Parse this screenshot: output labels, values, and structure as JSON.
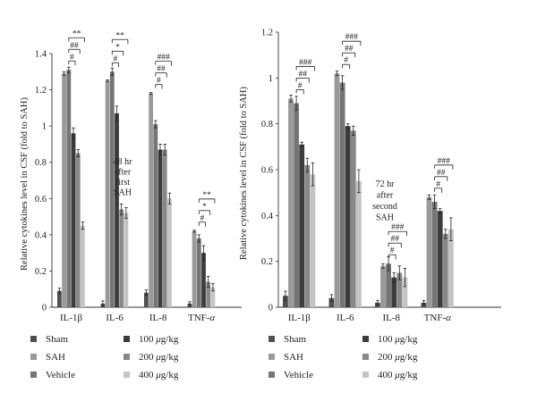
{
  "chart_data": [
    {
      "type": "bar",
      "panel": "left",
      "ylabel": "Relative cytokines level in CSF (fold to SAH)",
      "ylim": [
        0,
        1.4
      ],
      "yticks": [
        "0",
        "0.2",
        "0.4",
        "0.6",
        "0.8",
        "1",
        "1.2",
        "1.4"
      ],
      "categories": [
        "IL-1β",
        "IL-6",
        "IL-8",
        "TNF-α"
      ],
      "series": [
        {
          "name": "Sham",
          "color": "#505050",
          "values": [
            0.09,
            0.02,
            0.08,
            0.02
          ],
          "errors": [
            0.015,
            0.015,
            0.015,
            0.01
          ]
        },
        {
          "name": "SAH",
          "color": "#999999",
          "values": [
            1.29,
            1.25,
            1.18,
            0.42
          ],
          "errors": [
            0.01,
            0.005,
            0.005,
            0.005
          ]
        },
        {
          "name": "Vehicle",
          "color": "#757575",
          "values": [
            1.31,
            1.3,
            1.01,
            0.38
          ],
          "errors": [
            0.015,
            0.02,
            0.02,
            0.02
          ]
        },
        {
          "name": "100 μg/kg",
          "color": "#3c3c3c",
          "values": [
            0.96,
            1.07,
            0.87,
            0.3
          ],
          "errors": [
            0.03,
            0.04,
            0.03,
            0.04
          ]
        },
        {
          "name": "200 μg/kg",
          "color": "#888888",
          "values": [
            0.85,
            0.54,
            0.87,
            0.14
          ],
          "errors": [
            0.02,
            0.03,
            0.03,
            0.03
          ]
        },
        {
          "name": "400 μg/kg",
          "color": "#c4c4c4",
          "values": [
            0.45,
            0.52,
            0.6,
            0.11
          ],
          "errors": [
            0.02,
            0.03,
            0.03,
            0.02
          ]
        }
      ],
      "annotation": [
        "48 hr",
        "after",
        "first",
        "SAH"
      ],
      "significance": [
        {
          "category": "IL-1β",
          "marks": [
            "#",
            "##",
            "**"
          ]
        },
        {
          "category": "IL-6",
          "marks": [
            "#",
            "*",
            "**"
          ]
        },
        {
          "category": "IL-8",
          "marks": [
            "#",
            "##",
            "###"
          ]
        },
        {
          "category": "TNF-α",
          "marks": [
            "#",
            "*",
            "**"
          ]
        }
      ]
    },
    {
      "type": "bar",
      "panel": "right",
      "ylabel": "Relative cytokines level in CSF (fold to SAH)",
      "ylim": [
        0,
        1.2
      ],
      "yticks": [
        "0",
        "0.2",
        "0.4",
        "0.6",
        "0.8",
        "1",
        "1.2"
      ],
      "categories": [
        "IL-1β",
        "IL-6",
        "IL-8",
        "TNF-α"
      ],
      "series": [
        {
          "name": "Sham",
          "color": "#505050",
          "values": [
            0.05,
            0.04,
            0.02,
            0.02
          ],
          "errors": [
            0.02,
            0.015,
            0.01,
            0.01
          ]
        },
        {
          "name": "SAH",
          "color": "#999999",
          "values": [
            0.91,
            1.02,
            0.18,
            0.48
          ],
          "errors": [
            0.015,
            0.01,
            0.01,
            0.01
          ]
        },
        {
          "name": "Vehicle",
          "color": "#757575",
          "values": [
            0.89,
            0.98,
            0.19,
            0.46
          ],
          "errors": [
            0.03,
            0.03,
            0.03,
            0.03
          ]
        },
        {
          "name": "100 μg/kg",
          "color": "#3c3c3c",
          "values": [
            0.71,
            0.79,
            0.13,
            0.42
          ],
          "errors": [
            0.01,
            0.01,
            0.02,
            0.01
          ]
        },
        {
          "name": "200 μg/kg",
          "color": "#888888",
          "values": [
            0.62,
            0.77,
            0.15,
            0.32
          ],
          "errors": [
            0.03,
            0.02,
            0.03,
            0.02
          ]
        },
        {
          "name": "400 μg/kg",
          "color": "#c4c4c4",
          "values": [
            0.58,
            0.55,
            0.13,
            0.34
          ],
          "errors": [
            0.05,
            0.05,
            0.04,
            0.05
          ]
        }
      ],
      "annotation": [
        "72 hr",
        "after",
        "second",
        "SAH"
      ],
      "significance": [
        {
          "category": "IL-1β",
          "marks": [
            "#",
            "##",
            "###"
          ]
        },
        {
          "category": "IL-6",
          "marks": [
            "#",
            "##",
            "###"
          ]
        },
        {
          "category": "IL-8",
          "marks": [
            "#",
            "##",
            "###"
          ]
        },
        {
          "category": "TNF-α",
          "marks": [
            "#",
            "##",
            "###"
          ]
        }
      ]
    }
  ]
}
